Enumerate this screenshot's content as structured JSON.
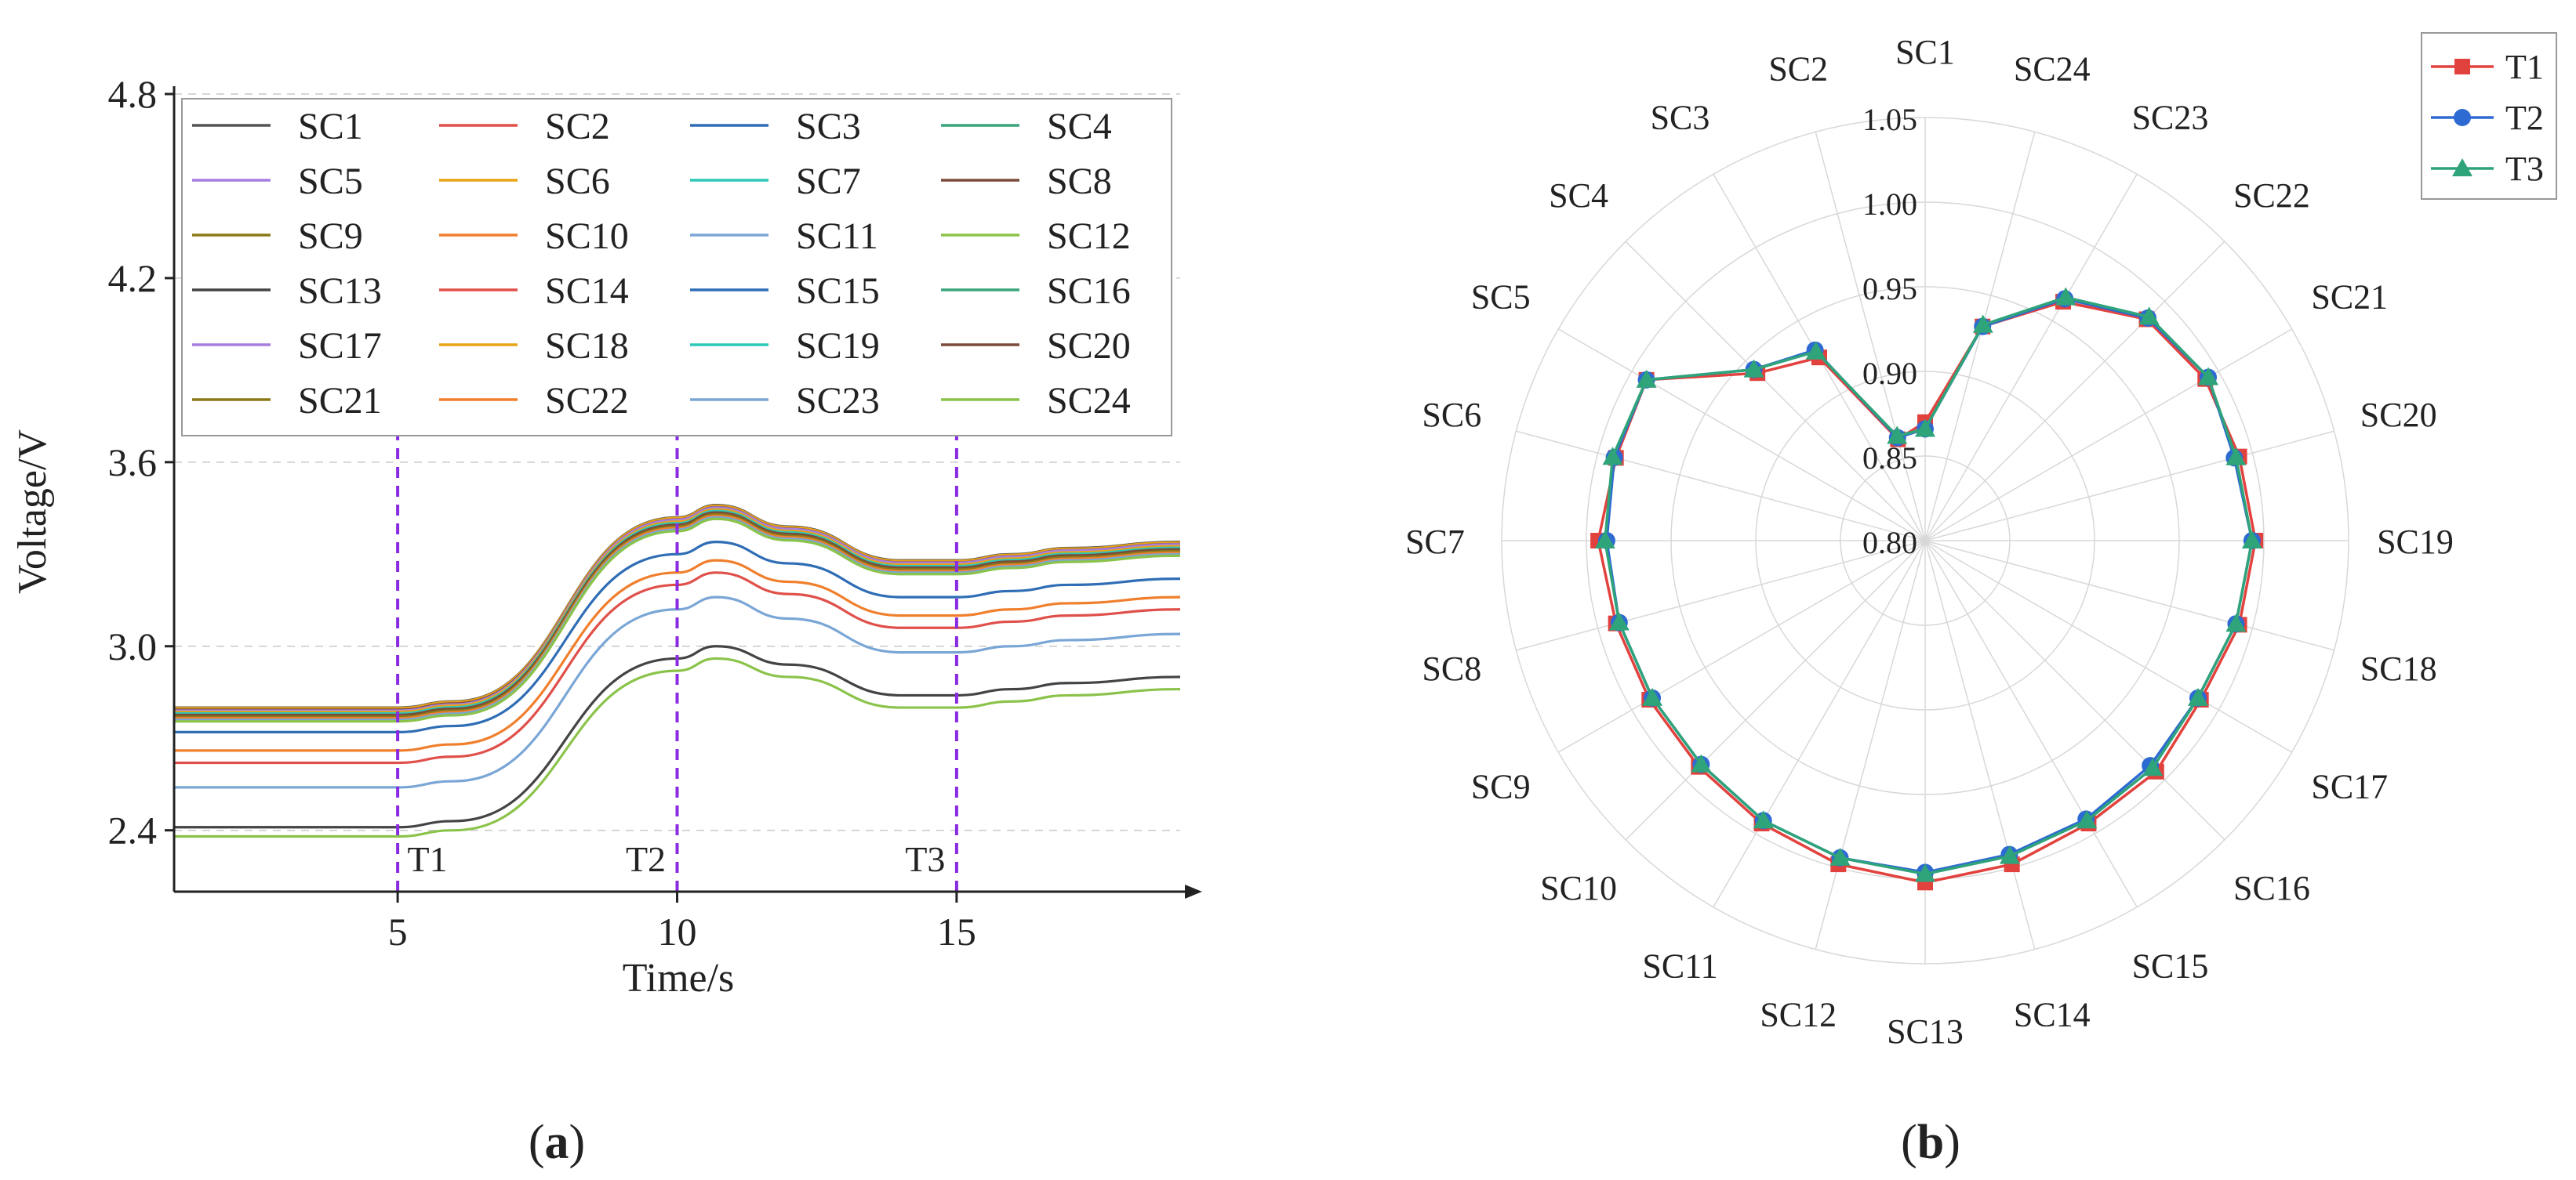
{
  "chart_data": [
    {
      "type": "line",
      "panel_label": "a",
      "title": "",
      "xlabel": "Time/s",
      "ylabel": "Voltage/V",
      "xlim": [
        1,
        19
      ],
      "ylim": [
        2.2,
        4.8
      ],
      "x_ticks": [
        5,
        10,
        15
      ],
      "y_ticks": [
        2.4,
        3.0,
        3.6,
        4.2,
        4.8
      ],
      "y_tick_labels": [
        "2.4",
        "3.0",
        "3.6",
        "4.2",
        "4.8"
      ],
      "grid": "horizontal dashed",
      "legend": "top, 4 columns",
      "markers": [
        {
          "label": "T1",
          "x": 5
        },
        {
          "label": "T2",
          "x": 10
        },
        {
          "label": "T3",
          "x": 15
        }
      ],
      "x": [
        1,
        5,
        6,
        10,
        10.7,
        12,
        14,
        15,
        16,
        17,
        19
      ],
      "series": [
        {
          "name": "SC1",
          "color": "#555555",
          "values": [
            2.8,
            2.8,
            2.82,
            3.42,
            3.46,
            3.39,
            3.28,
            3.28,
            3.3,
            3.32,
            3.34
          ]
        },
        {
          "name": "SC2",
          "color": "#e0504a",
          "values": [
            2.795,
            2.795,
            2.815,
            3.415,
            3.455,
            3.385,
            3.275,
            3.275,
            3.295,
            3.315,
            3.335
          ]
        },
        {
          "name": "SC3",
          "color": "#2f6db5",
          "values": [
            2.79,
            2.79,
            2.81,
            3.41,
            3.45,
            3.38,
            3.27,
            3.27,
            3.29,
            3.31,
            3.33
          ]
        },
        {
          "name": "SC4",
          "color": "#3aa67a",
          "values": [
            2.785,
            2.785,
            2.805,
            3.405,
            3.445,
            3.375,
            3.265,
            3.265,
            3.285,
            3.305,
            3.325
          ]
        },
        {
          "name": "SC5",
          "color": "#a77de0",
          "values": [
            2.78,
            2.78,
            2.8,
            3.4,
            3.44,
            3.37,
            3.26,
            3.26,
            3.28,
            3.3,
            3.32
          ]
        },
        {
          "name": "SC6",
          "color": "#e8a317",
          "values": [
            2.798,
            2.798,
            2.818,
            3.418,
            3.458,
            3.388,
            3.278,
            3.278,
            3.298,
            3.318,
            3.338
          ]
        },
        {
          "name": "SC7",
          "color": "#2cc7b8",
          "values": [
            2.783,
            2.783,
            2.803,
            3.403,
            3.443,
            3.373,
            3.263,
            3.263,
            3.283,
            3.303,
            3.323
          ]
        },
        {
          "name": "SC8",
          "color": "#7a4a3a",
          "values": [
            2.793,
            2.793,
            2.813,
            3.413,
            3.453,
            3.383,
            3.273,
            3.273,
            3.293,
            3.313,
            3.333
          ]
        },
        {
          "name": "SC9",
          "color": "#8a7a1a",
          "values": [
            2.788,
            2.788,
            2.808,
            3.408,
            3.448,
            3.378,
            3.268,
            3.268,
            3.288,
            3.308,
            3.328
          ]
        },
        {
          "name": "SC10",
          "color": "#f07f2d",
          "values": [
            2.66,
            2.66,
            2.68,
            3.24,
            3.28,
            3.21,
            3.1,
            3.1,
            3.12,
            3.14,
            3.16
          ]
        },
        {
          "name": "SC11",
          "color": "#7aa6d6",
          "values": [
            2.54,
            2.54,
            2.56,
            3.12,
            3.16,
            3.09,
            2.98,
            2.98,
            3.0,
            3.02,
            3.04
          ]
        },
        {
          "name": "SC12",
          "color": "#8bc34a",
          "values": [
            2.38,
            2.38,
            2.4,
            2.92,
            2.96,
            2.9,
            2.8,
            2.8,
            2.82,
            2.84,
            2.86
          ]
        },
        {
          "name": "SC13",
          "color": "#444444",
          "values": [
            2.41,
            2.41,
            2.43,
            2.96,
            3.0,
            2.94,
            2.84,
            2.84,
            2.86,
            2.88,
            2.9
          ]
        },
        {
          "name": "SC14",
          "color": "#e0504a",
          "values": [
            2.62,
            2.62,
            2.64,
            3.2,
            3.24,
            3.17,
            3.06,
            3.06,
            3.08,
            3.1,
            3.12
          ]
        },
        {
          "name": "SC15",
          "color": "#2f6db5",
          "values": [
            2.72,
            2.72,
            2.74,
            3.3,
            3.34,
            3.27,
            3.16,
            3.16,
            3.18,
            3.2,
            3.22
          ]
        },
        {
          "name": "SC16",
          "color": "#3aa67a",
          "values": [
            2.778,
            2.778,
            2.798,
            3.398,
            3.438,
            3.368,
            3.258,
            3.258,
            3.278,
            3.298,
            3.318
          ]
        },
        {
          "name": "SC17",
          "color": "#a77de0",
          "values": [
            2.79,
            2.79,
            2.81,
            3.412,
            3.452,
            3.382,
            3.272,
            3.272,
            3.292,
            3.312,
            3.332
          ]
        },
        {
          "name": "SC18",
          "color": "#e8a317",
          "values": [
            2.786,
            2.786,
            2.806,
            3.406,
            3.446,
            3.376,
            3.266,
            3.266,
            3.286,
            3.306,
            3.326
          ]
        },
        {
          "name": "SC19",
          "color": "#2cc7b8",
          "values": [
            2.781,
            2.781,
            2.801,
            3.401,
            3.441,
            3.371,
            3.261,
            3.261,
            3.281,
            3.301,
            3.321
          ]
        },
        {
          "name": "SC20",
          "color": "#7a4a3a",
          "values": [
            2.776,
            2.776,
            2.796,
            3.396,
            3.436,
            3.366,
            3.256,
            3.256,
            3.276,
            3.296,
            3.316
          ]
        },
        {
          "name": "SC21",
          "color": "#8a7a1a",
          "values": [
            2.77,
            2.77,
            2.79,
            3.39,
            3.43,
            3.36,
            3.25,
            3.25,
            3.27,
            3.29,
            3.31
          ]
        },
        {
          "name": "SC22",
          "color": "#f07f2d",
          "values": [
            2.765,
            2.765,
            2.785,
            3.385,
            3.425,
            3.355,
            3.245,
            3.245,
            3.265,
            3.285,
            3.305
          ]
        },
        {
          "name": "SC23",
          "color": "#7aa6d6",
          "values": [
            2.76,
            2.76,
            2.78,
            3.38,
            3.42,
            3.35,
            3.24,
            3.24,
            3.26,
            3.28,
            3.3
          ]
        },
        {
          "name": "SC24",
          "color": "#8bc34a",
          "values": [
            2.755,
            2.755,
            2.775,
            3.375,
            3.415,
            3.345,
            3.235,
            3.235,
            3.255,
            3.275,
            3.295
          ]
        }
      ]
    },
    {
      "type": "radar",
      "panel_label": "b",
      "title": "",
      "categories": [
        "SC1",
        "SC24",
        "SC23",
        "SC22",
        "SC21",
        "SC20",
        "SC19",
        "SC18",
        "SC17",
        "SC16",
        "SC15",
        "SC14",
        "SC13",
        "SC12",
        "SC11",
        "SC10",
        "SC9",
        "SC8",
        "SC7",
        "SC6",
        "SC5",
        "SC4",
        "SC3",
        "SC2"
      ],
      "rlim": [
        0.8,
        1.05
      ],
      "r_ticks": [
        0.8,
        0.85,
        0.9,
        0.95,
        1.0,
        1.05
      ],
      "r_tick_labels": [
        "0.80",
        "0.85",
        "0.90",
        "0.95",
        "1.00",
        "1.05"
      ],
      "legend": "top-right",
      "series": [
        {
          "name": "T1",
          "color": "#e2423e",
          "marker": "square",
          "values": [
            0.87,
            0.931,
            0.963,
            0.985,
            0.991,
            0.992,
            0.995,
            0.992,
            0.988,
            0.993,
            0.993,
            0.998,
            1.002,
            0.998,
            0.993,
            0.989,
            0.988,
            0.989,
            0.993,
            0.989,
            0.99,
            0.94,
            0.925,
            0.862
          ]
        },
        {
          "name": "T2",
          "color": "#2d6ad2",
          "marker": "circle",
          "values": [
            0.866,
            0.931,
            0.965,
            0.986,
            0.993,
            0.989,
            0.993,
            0.99,
            0.986,
            0.988,
            0.99,
            0.992,
            0.996,
            0.994,
            0.991,
            0.987,
            0.986,
            0.987,
            0.988,
            0.99,
            0.99,
            0.943,
            0.93,
            0.863
          ]
        },
        {
          "name": "T3",
          "color": "#2fa37a",
          "marker": "triangle",
          "values": [
            0.866,
            0.932,
            0.966,
            0.987,
            0.993,
            0.99,
            0.993,
            0.99,
            0.986,
            0.99,
            0.991,
            0.993,
            0.997,
            0.994,
            0.991,
            0.987,
            0.986,
            0.987,
            0.989,
            0.991,
            0.99,
            0.943,
            0.929,
            0.864
          ]
        }
      ]
    }
  ],
  "captions": {
    "a": "a",
    "b": "b"
  }
}
